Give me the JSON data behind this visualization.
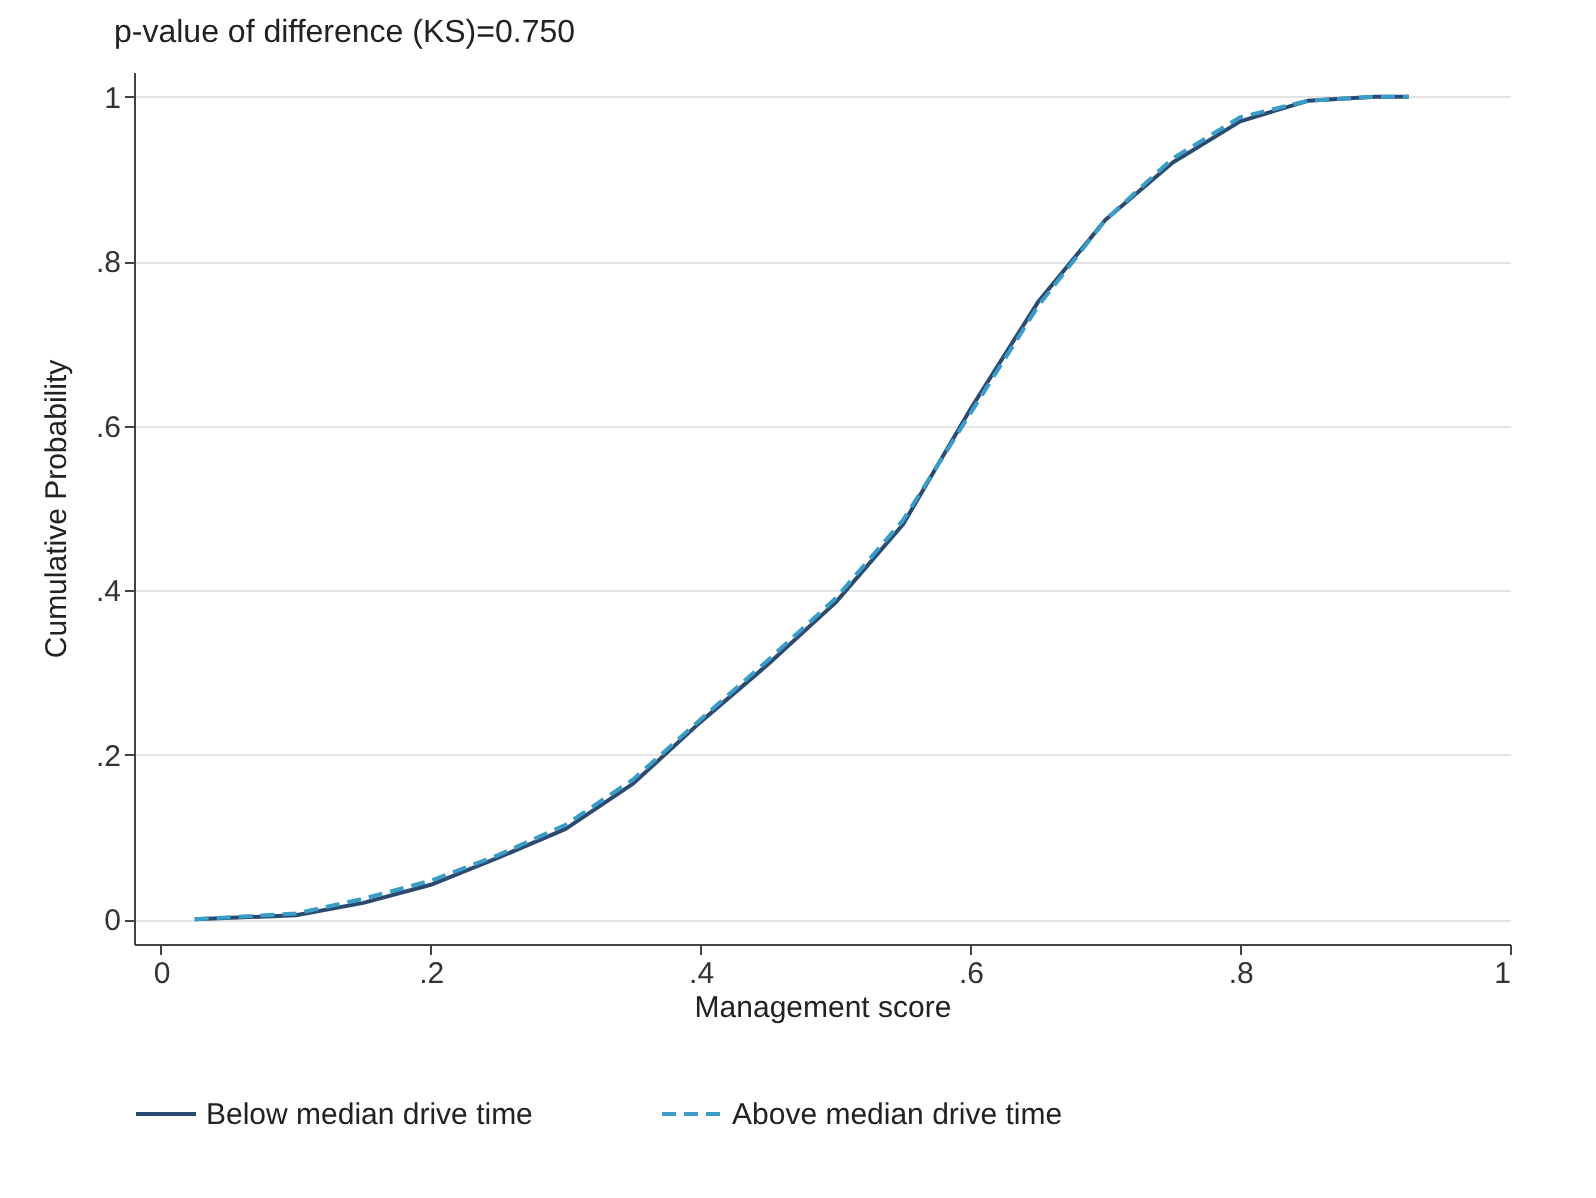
{
  "chart_data": {
    "type": "line",
    "title": "p-value of difference (KS)=0.750",
    "xlabel": "Management score",
    "ylabel": "Cumulative Probability",
    "x": [
      0.025,
      0.1,
      0.15,
      0.2,
      0.25,
      0.3,
      0.35,
      0.4,
      0.45,
      0.5,
      0.55,
      0.6,
      0.65,
      0.7,
      0.75,
      0.8,
      0.85,
      0.9,
      0.925
    ],
    "series": [
      {
        "name": "Below median drive time",
        "color": "#2b4a6f",
        "line_style": "solid",
        "values": [
          0,
          0.005,
          0.02,
          0.042,
          0.075,
          0.11,
          0.165,
          0.24,
          0.31,
          0.385,
          0.48,
          0.62,
          0.75,
          0.85,
          0.92,
          0.97,
          0.995,
          1,
          1
        ]
      },
      {
        "name": "Above median drive time",
        "color": "#3a9dc8",
        "line_style": "dashed",
        "values": [
          0,
          0.007,
          0.025,
          0.047,
          0.078,
          0.115,
          0.17,
          0.243,
          0.315,
          0.39,
          0.485,
          0.615,
          0.745,
          0.85,
          0.925,
          0.975,
          0.995,
          1,
          1
        ]
      }
    ],
    "xlim": [
      -0.02,
      1.0
    ],
    "xticks": [
      0,
      {
        "value": 0.2,
        "label": ".2"
      },
      {
        "value": 0.4,
        "label": ".4"
      },
      {
        "value": 0.6,
        "label": ".6"
      },
      {
        "value": 0.8,
        "label": ".8"
      },
      1
    ],
    "ylim": [
      -0.03,
      1.03
    ],
    "yticks": [
      0,
      {
        "value": 0.2,
        "label": ".2"
      },
      {
        "value": 0.4,
        "label": ".4"
      },
      {
        "value": 0.6,
        "label": ".6"
      },
      {
        "value": 0.8,
        "label": ".8"
      },
      1
    ],
    "grid": "y",
    "legend": "bottom",
    "marker": "none"
  }
}
